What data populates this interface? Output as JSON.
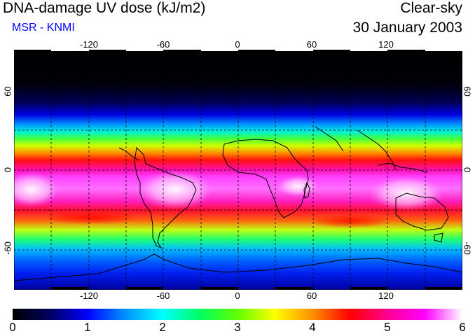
{
  "header": {
    "title": "DNA-damage UV dose (kJ/m2)",
    "source": "MSR - KNMI",
    "condition": "Clear-sky",
    "date": "30 January 2003"
  },
  "map": {
    "lon_ticks": [
      "-120",
      "-60",
      "0",
      "60",
      "120"
    ],
    "lat_left": [
      "60",
      "0",
      "-60"
    ],
    "lat_right": [
      "60",
      "0",
      "-60"
    ]
  },
  "colorbar": {
    "labels": [
      "0",
      "1",
      "2",
      "3",
      "4",
      "5",
      "6"
    ],
    "min": 0,
    "max": 6,
    "colors": [
      "#000000",
      "#000060",
      "#0000ff",
      "#0090ff",
      "#00ffff",
      "#00ff60",
      "#60ff00",
      "#ffff00",
      "#ff9000",
      "#ff0000",
      "#ff0090",
      "#ff00ff",
      "#ffffff"
    ]
  }
}
